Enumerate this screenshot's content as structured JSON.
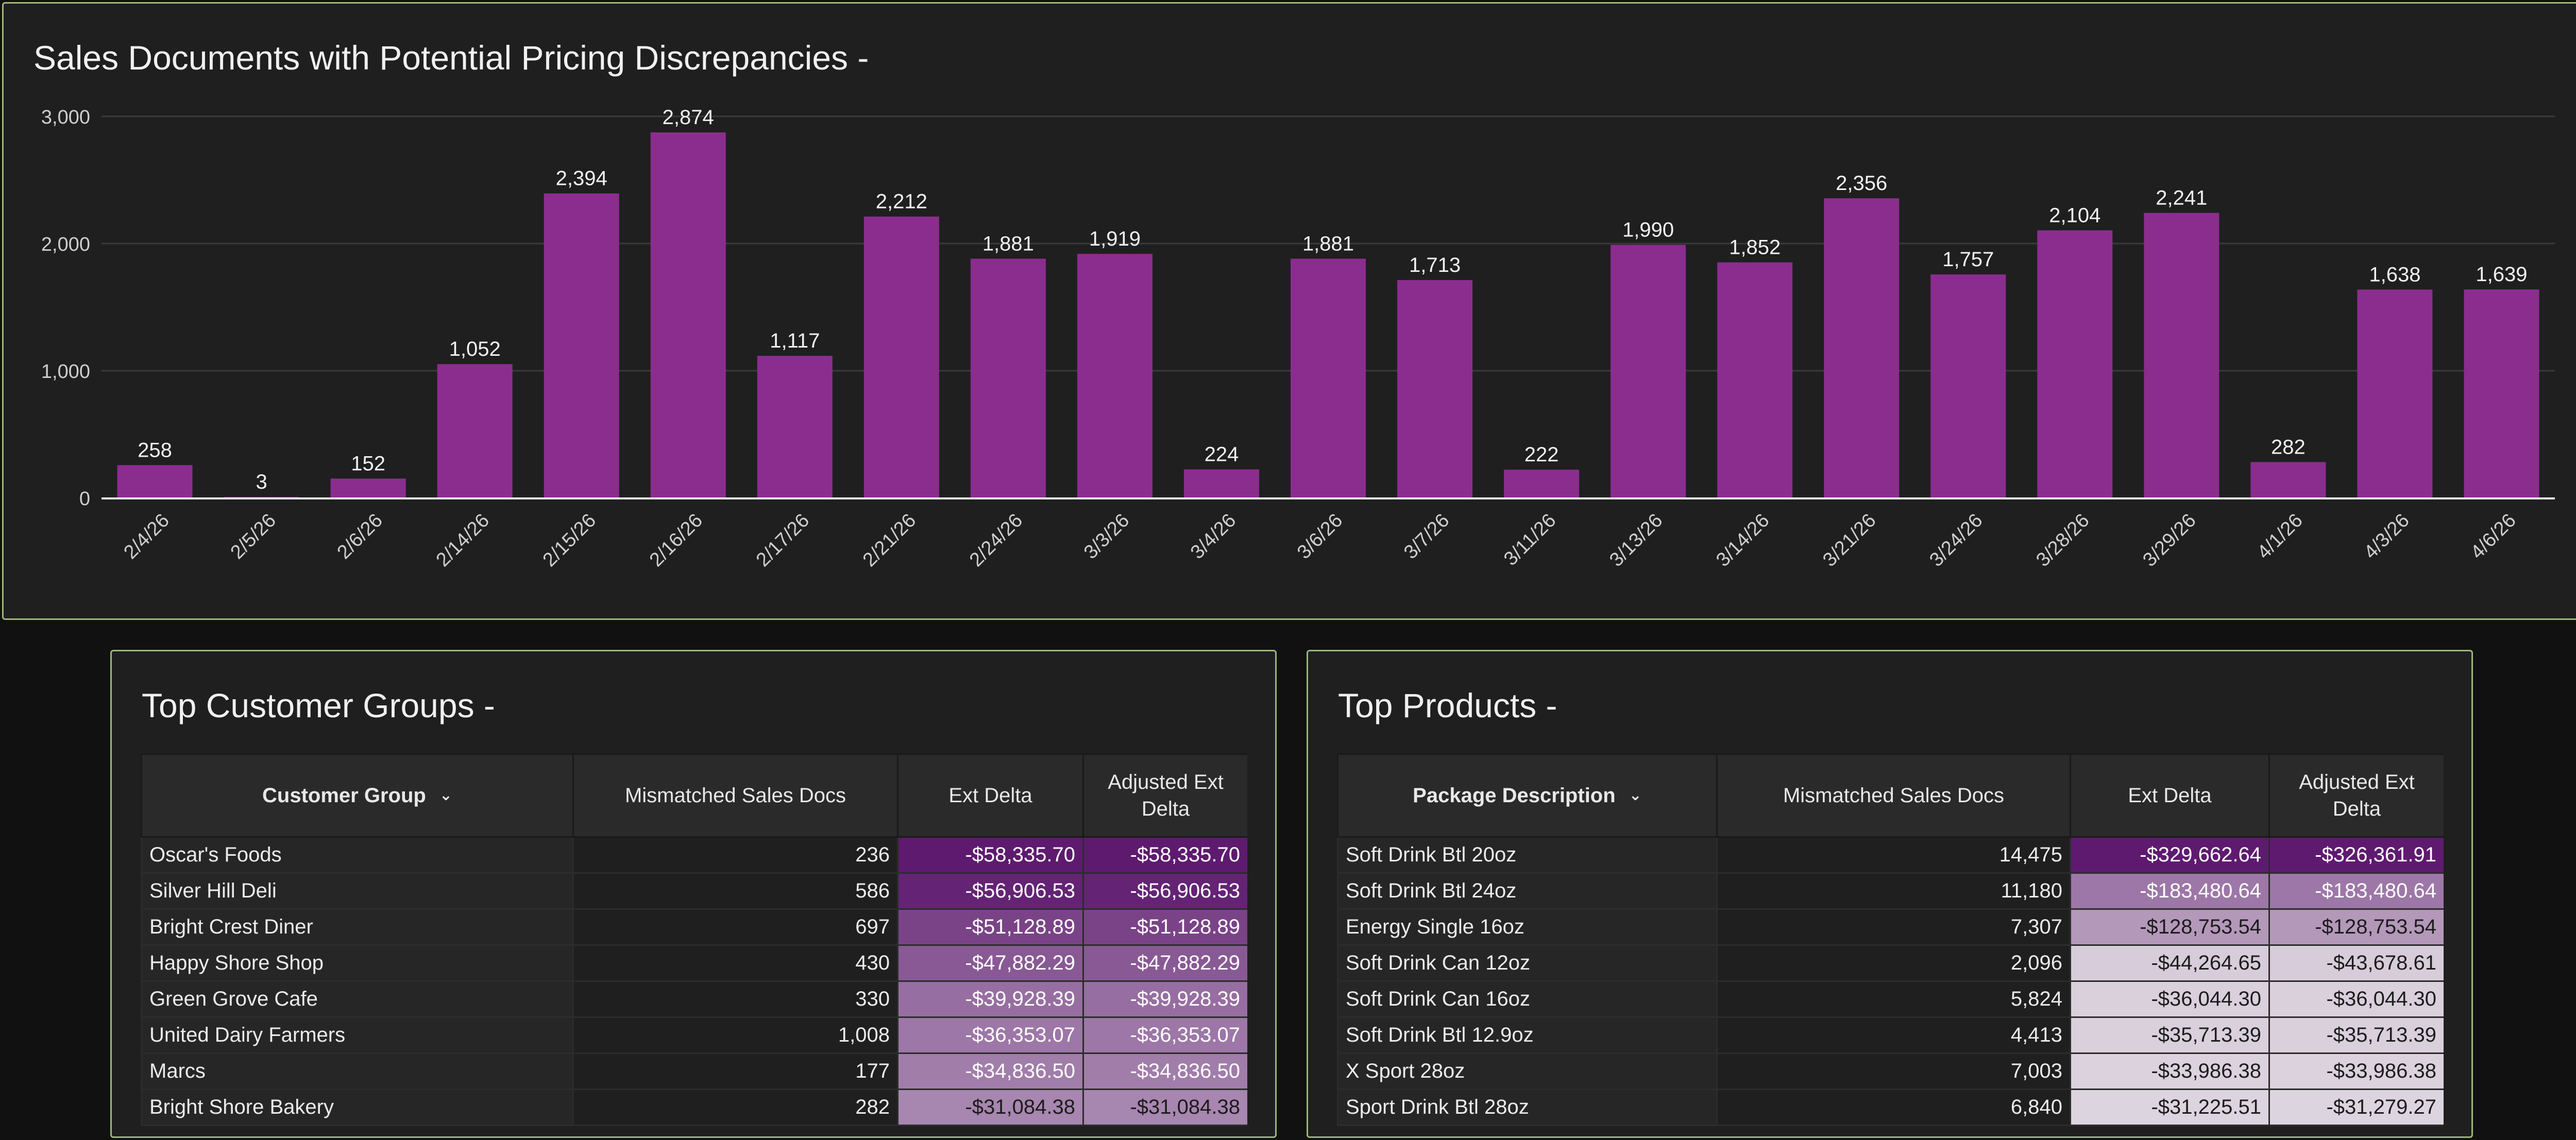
{
  "chart_panel": {
    "title": "Sales Documents with Potential Pricing Discrepancies -",
    "chart_data": {
      "type": "bar",
      "categories": [
        "2/4/26",
        "2/5/26",
        "2/6/26",
        "2/14/26",
        "2/15/26",
        "2/16/26",
        "2/17/26",
        "2/21/26",
        "2/24/26",
        "3/3/26",
        "3/4/26",
        "3/6/26",
        "3/7/26",
        "3/11/26",
        "3/13/26",
        "3/14/26",
        "3/21/26",
        "3/24/26",
        "3/28/26",
        "3/29/26",
        "4/1/26",
        "4/3/26",
        "4/6/26"
      ],
      "values": [
        258,
        3,
        152,
        1052,
        2394,
        2874,
        1117,
        2212,
        1881,
        1919,
        224,
        1881,
        1713,
        222,
        1990,
        1852,
        2356,
        1757,
        2104,
        2241,
        282,
        1638,
        1639
      ],
      "value_labels": [
        "258",
        "3",
        "152",
        "1,052",
        "2,394",
        "2,874",
        "1,117",
        "2,212",
        "1,881",
        "1,919",
        "224",
        "1,881",
        "1,713",
        "222",
        "1,990",
        "1,852",
        "2,356",
        "1,757",
        "2,104",
        "2,241",
        "282",
        "1,638",
        "1,639"
      ],
      "y_ticks": [
        0,
        1000,
        2000,
        3000
      ],
      "y_tick_labels": [
        "0",
        "1,000",
        "2,000",
        "3,000"
      ],
      "ylim": [
        0,
        3000
      ],
      "grid": true,
      "bar_color": "#8b2d8f"
    }
  },
  "customer_groups": {
    "title": "Top Customer Groups -",
    "columns": [
      "Customer Group",
      "Mismatched Sales Docs",
      "Ext Delta",
      "Adjusted Ext Delta"
    ],
    "rows": [
      {
        "name": "Oscar's Foods",
        "docs": "236",
        "ext": "-$58,335.70",
        "adj": "-$58,335.70",
        "ext_level": 1.0,
        "adj_level": 1.0
      },
      {
        "name": "Silver Hill Deli",
        "docs": "586",
        "ext": "-$56,906.53",
        "adj": "-$56,906.53",
        "ext_level": 0.95,
        "adj_level": 0.95
      },
      {
        "name": "Bright Crest Diner",
        "docs": "697",
        "ext": "-$51,128.89",
        "adj": "-$51,128.89",
        "ext_level": 0.78,
        "adj_level": 0.78
      },
      {
        "name": "Happy Shore Shop",
        "docs": "430",
        "ext": "-$47,882.29",
        "adj": "-$47,882.29",
        "ext_level": 0.66,
        "adj_level": 0.66
      },
      {
        "name": "Green Grove Cafe",
        "docs": "330",
        "ext": "-$39,928.39",
        "adj": "-$39,928.39",
        "ext_level": 0.55,
        "adj_level": 0.55
      },
      {
        "name": "United Dairy Farmers",
        "docs": "1,008",
        "ext": "-$36,353.07",
        "adj": "-$36,353.07",
        "ext_level": 0.5,
        "adj_level": 0.5
      },
      {
        "name": "Marcs",
        "docs": "177",
        "ext": "-$34,836.50",
        "adj": "-$34,836.50",
        "ext_level": 0.47,
        "adj_level": 0.47
      },
      {
        "name": "Bright Shore Bakery",
        "docs": "282",
        "ext": "-$31,084.38",
        "adj": "-$31,084.38",
        "ext_level": 0.42,
        "adj_level": 0.42
      }
    ]
  },
  "products": {
    "title": "Top Products -",
    "columns": [
      "Package Description",
      "Mismatched Sales Docs",
      "Ext Delta",
      "Adjusted Ext Delta"
    ],
    "rows": [
      {
        "name": "Soft Drink Btl 20oz",
        "docs": "14,475",
        "ext": "-$329,662.64",
        "adj": "-$326,361.91",
        "ext_level": 1.0,
        "adj_level": 1.0
      },
      {
        "name": "Soft Drink Btl 24oz",
        "docs": "11,180",
        "ext": "-$183,480.64",
        "adj": "-$183,480.64",
        "ext_level": 0.5,
        "adj_level": 0.5
      },
      {
        "name": "Energy Single 16oz",
        "docs": "7,307",
        "ext": "-$128,753.54",
        "adj": "-$128,753.54",
        "ext_level": 0.32,
        "adj_level": 0.32
      },
      {
        "name": "Soft Drink Can 12oz",
        "docs": "2,096",
        "ext": "-$44,264.65",
        "adj": "-$43,678.61",
        "ext_level": 0.04,
        "adj_level": 0.04
      },
      {
        "name": "Soft Drink Can 16oz",
        "docs": "5,824",
        "ext": "-$36,044.30",
        "adj": "-$36,044.30",
        "ext_level": 0.02,
        "adj_level": 0.02
      },
      {
        "name": "Soft Drink Btl 12.9oz",
        "docs": "4,413",
        "ext": "-$35,713.39",
        "adj": "-$35,713.39",
        "ext_level": 0.02,
        "adj_level": 0.02
      },
      {
        "name": "X Sport 28oz",
        "docs": "7,003",
        "ext": "-$33,986.38",
        "adj": "-$33,986.38",
        "ext_level": 0.01,
        "adj_level": 0.01
      },
      {
        "name": "Sport Drink Btl 28oz",
        "docs": "6,840",
        "ext": "-$31,225.51",
        "adj": "-$31,279.27",
        "ext_level": 0.0,
        "adj_level": 0.0
      }
    ]
  },
  "colors": {
    "heat_high": "#5e1a6f",
    "heat_low": "#dcd4de",
    "panel_border": "#9db67a"
  }
}
